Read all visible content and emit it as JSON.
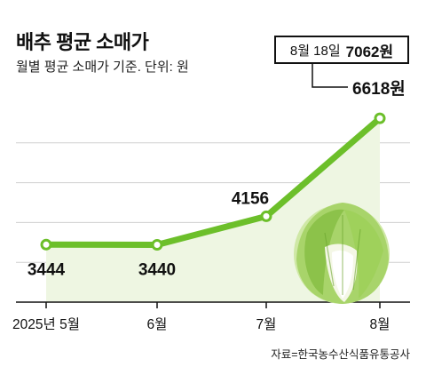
{
  "chart_data": {
    "type": "line",
    "title": "배추 평균 소매가",
    "subtitle": "월별 평균 소매가 기준. 단위: 원",
    "categories": [
      "2025년 5월",
      "6월",
      "7월",
      "8월"
    ],
    "values": [
      3444,
      3440,
      4156,
      6618
    ],
    "value_labels": [
      "3444",
      "3440",
      "4156",
      "6618원"
    ],
    "annotation": {
      "date": "8월 18일",
      "value": "7062원"
    },
    "ylim": [
      2000,
      7000
    ],
    "grid": true,
    "source": "자료=한국농수산식품유통공사",
    "colors": {
      "line": "#6cbf2a",
      "area": "#eef6e2",
      "marker_fill": "#ffffff"
    }
  },
  "icons": {
    "illustration": "cabbage-icon"
  }
}
